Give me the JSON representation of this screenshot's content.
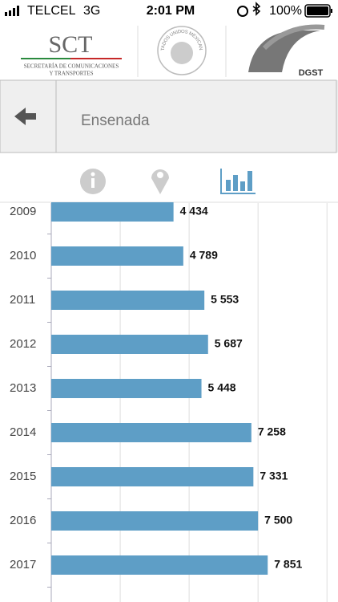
{
  "status_bar": {
    "carrier": "TELCEL",
    "network": "3G",
    "time": "2:01 PM",
    "battery": "100%"
  },
  "header": {
    "sct_logo": "SCT",
    "sct_line1": "SECRETARÍA DE COMUNICACIONES",
    "sct_line2": "Y TRANSPORTES",
    "seal_text": "ESTADOS UNIDOS MEXICANOS",
    "dgst": "DGST"
  },
  "nav": {
    "title": "Ensenada"
  },
  "chart_data": {
    "type": "hbar",
    "categories": [
      "2009",
      "2010",
      "2011",
      "2012",
      "2013",
      "2014",
      "2015",
      "2016",
      "2017"
    ],
    "values": [
      4434,
      4789,
      5553,
      5687,
      5448,
      7258,
      7331,
      7500,
      7851
    ],
    "value_labels": [
      "4 434",
      "4 789",
      "5 553",
      "5 687",
      "5 448",
      "7 258",
      "7 331",
      "7 500",
      "7 851"
    ],
    "color": "#5e9ec6",
    "xlim": [
      0,
      10400
    ],
    "xticks": [
      0,
      2500,
      5000,
      7500,
      10000
    ],
    "grid": true
  }
}
